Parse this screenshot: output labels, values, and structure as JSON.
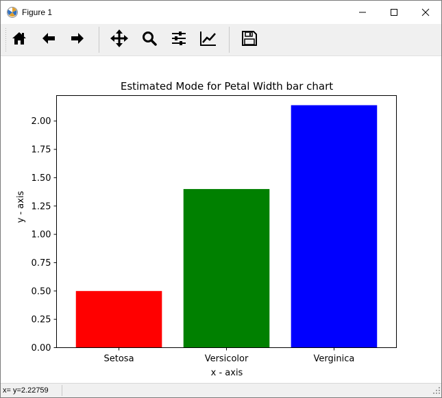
{
  "window": {
    "title": "Figure 1",
    "icons": {
      "app": "matplotlib-figure-icon",
      "minimize": "minimize-icon",
      "maximize": "maximize-icon",
      "close": "close-icon"
    }
  },
  "toolbar": {
    "buttons": [
      {
        "name": "home",
        "icon": "home-icon"
      },
      {
        "name": "back",
        "icon": "arrow-left-icon"
      },
      {
        "name": "forward",
        "icon": "arrow-right-icon"
      },
      {
        "name": "pan",
        "icon": "move-arrows-icon"
      },
      {
        "name": "zoom",
        "icon": "magnifier-icon"
      },
      {
        "name": "subplots",
        "icon": "sliders-icon"
      },
      {
        "name": "edit-axis",
        "icon": "line-chart-icon"
      },
      {
        "name": "save",
        "icon": "floppy-disk-icon"
      }
    ]
  },
  "status": {
    "text": "x= y=2.22759"
  },
  "chart_data": {
    "type": "bar",
    "title": "Estimated Mode for Petal Width bar chart",
    "xlabel": "x - axis",
    "ylabel": "y - axis",
    "categories": [
      "Setosa",
      "Versicolor",
      "Verginica"
    ],
    "values": [
      0.5,
      1.4,
      2.14
    ],
    "colors": [
      "#ff0000",
      "#008000",
      "#0000ff"
    ],
    "ylim": [
      0,
      2.225
    ],
    "yticks": [
      "0.00",
      "0.25",
      "0.50",
      "0.75",
      "1.00",
      "1.25",
      "1.50",
      "1.75",
      "2.00"
    ],
    "grid": false,
    "legend": "none"
  }
}
